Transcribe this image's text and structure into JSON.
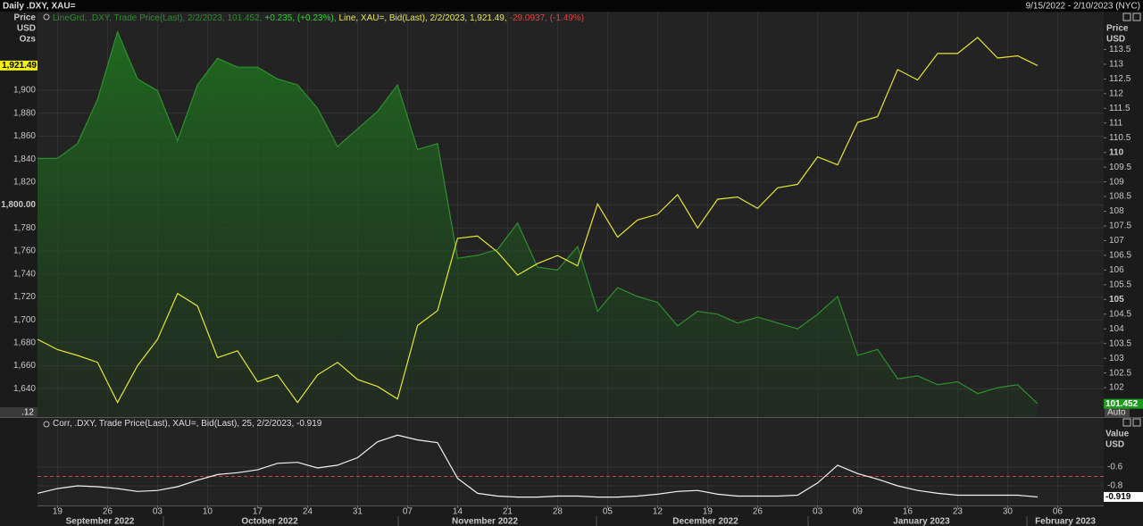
{
  "header": {
    "title": "Daily .DXY, XAU=",
    "range": "9/15/2022 - 2/10/2023 (NYC)"
  },
  "ui": {
    "auto": "Auto",
    "cut_label": ".12"
  },
  "chart_data": [
    {
      "type": "line",
      "legend": [
        {
          "text": "LineGrd, .DXY, Trade Price(Last), 2/2/2023, 101.452,",
          "color": "#2e8b2e"
        },
        {
          "text": "+0.235, (+0.23%),",
          "color": "#36d236"
        },
        {
          "text": "Line, XAU=, Bid(Last), 2/2/2023, 1,921.49,",
          "color": "#e6e64d"
        },
        {
          "text": "-29.0937, (-1.49%)",
          "color": "#e04040"
        }
      ],
      "y_label": [
        "Price",
        "USD",
        "Ozs"
      ],
      "y2_label": [
        "Price",
        "USD"
      ],
      "x": [
        "2022-09-15",
        "2022-09-19",
        "2022-09-21",
        "2022-09-23",
        "2022-09-27",
        "2022-09-29",
        "2022-10-03",
        "2022-10-05",
        "2022-10-07",
        "2022-10-11",
        "2022-10-13",
        "2022-10-17",
        "2022-10-19",
        "2022-10-21",
        "2022-10-25",
        "2022-10-27",
        "2022-10-31",
        "2022-11-02",
        "2022-11-04",
        "2022-11-08",
        "2022-11-10",
        "2022-11-14",
        "2022-11-16",
        "2022-11-18",
        "2022-11-22",
        "2022-11-24",
        "2022-11-28",
        "2022-11-30",
        "2022-12-02",
        "2022-12-06",
        "2022-12-08",
        "2022-12-12",
        "2022-12-14",
        "2022-12-16",
        "2022-12-20",
        "2022-12-22",
        "2022-12-26",
        "2022-12-28",
        "2022-12-30",
        "2023-01-03",
        "2023-01-05",
        "2023-01-09",
        "2023-01-11",
        "2023-01-13",
        "2023-01-17",
        "2023-01-19",
        "2023-01-23",
        "2023-01-25",
        "2023-01-27",
        "2023-01-31",
        "2023-02-02"
      ],
      "ylim": [
        1615.3,
        1967.7
      ],
      "yticks": [
        {
          "value": 1640,
          "label": "1,640"
        },
        {
          "value": 1660,
          "label": "1,660"
        },
        {
          "value": 1680,
          "label": "1,680"
        },
        {
          "value": 1700,
          "label": "1,700"
        },
        {
          "value": 1720,
          "label": "1,720"
        },
        {
          "value": 1740,
          "label": "1,740"
        },
        {
          "value": 1760,
          "label": "1,760"
        },
        {
          "value": 1780,
          "label": "1,780"
        },
        {
          "value": 1800,
          "label": "1,800.00"
        },
        {
          "value": 1820,
          "label": "1,820"
        },
        {
          "value": 1840,
          "label": "1,840"
        },
        {
          "value": 1860,
          "label": "1,860"
        },
        {
          "value": 1880,
          "label": "1,880"
        },
        {
          "value": 1900,
          "label": "1,900"
        }
      ],
      "y2lim": [
        101.0,
        114.76
      ],
      "y2ticks": [
        102,
        102.5,
        103,
        103.5,
        104,
        104.5,
        105,
        105.5,
        106,
        106.5,
        107,
        107.5,
        108,
        108.5,
        109,
        109.5,
        110,
        110.5,
        111,
        111.5,
        112,
        112.5,
        113,
        113.5
      ],
      "grid": true,
      "series": [
        {
          "color": "#2f8f2f",
          "fill": "area",
          "axis": "y2",
          "tag": "101.452",
          "tag_color": "#1f9a1f",
          "values": [
            109.8,
            109.8,
            110.3,
            111.8,
            114.1,
            112.5,
            112.1,
            110.4,
            112.3,
            113.2,
            112.9,
            112.9,
            112.5,
            112.3,
            111.5,
            110.2,
            110.8,
            111.4,
            112.3,
            110.1,
            110.3,
            106.4,
            106.5,
            106.7,
            107.6,
            106.1,
            106.0,
            106.8,
            104.6,
            105.4,
            105.1,
            104.9,
            104.1,
            104.6,
            104.5,
            104.2,
            104.4,
            104.2,
            104.0,
            104.5,
            105.1,
            103.1,
            103.3,
            102.3,
            102.4,
            102.1,
            102.2,
            101.8,
            102.0,
            102.1,
            101.452
          ]
        },
        {
          "color": "#e6e630",
          "axis": "y",
          "tag": "1,921.49",
          "tag_color": "#f0f000",
          "values": [
            1683,
            1674,
            1669,
            1663,
            1628,
            1660,
            1683,
            1723,
            1712,
            1667,
            1673,
            1646,
            1652,
            1628,
            1652,
            1663,
            1648,
            1642,
            1631,
            1695,
            1708,
            1771,
            1773,
            1759,
            1739,
            1749,
            1756,
            1747,
            1801,
            1772,
            1787,
            1792,
            1809,
            1780,
            1805,
            1807,
            1797,
            1815,
            1818,
            1842,
            1835,
            1872,
            1877,
            1918,
            1909,
            1932,
            1932,
            1946,
            1928,
            1930,
            1921.49
          ]
        }
      ]
    },
    {
      "type": "line",
      "legend": [
        {
          "text": "Corr, .DXY, Trade Price(Last), XAU=, Bid(Last),  25, 2/2/2023, -0.919",
          "color": "#dddddd"
        }
      ],
      "y_label": [
        "Value",
        "USD"
      ],
      "yaxis_side": "right",
      "x": [
        "2022-09-15",
        "2022-09-19",
        "2022-09-21",
        "2022-09-23",
        "2022-09-27",
        "2022-09-29",
        "2022-10-03",
        "2022-10-05",
        "2022-10-07",
        "2022-10-11",
        "2022-10-13",
        "2022-10-17",
        "2022-10-19",
        "2022-10-21",
        "2022-10-25",
        "2022-10-27",
        "2022-10-31",
        "2022-11-02",
        "2022-11-04",
        "2022-11-08",
        "2022-11-10",
        "2022-11-14",
        "2022-11-16",
        "2022-11-18",
        "2022-11-22",
        "2022-11-24",
        "2022-11-28",
        "2022-11-30",
        "2022-12-02",
        "2022-12-06",
        "2022-12-08",
        "2022-12-12",
        "2022-12-14",
        "2022-12-16",
        "2022-12-20",
        "2022-12-22",
        "2022-12-26",
        "2022-12-28",
        "2022-12-30",
        "2023-01-03",
        "2023-01-05",
        "2023-01-09",
        "2023-01-11",
        "2023-01-13",
        "2023-01-17",
        "2023-01-19",
        "2023-01-23",
        "2023-01-25",
        "2023-01-27",
        "2023-01-31",
        "2023-02-02"
      ],
      "ylim": [
        -1.01,
        -0.076
      ],
      "yticks": [
        -0.6,
        -0.8
      ],
      "ref_line": {
        "value": -0.7,
        "color": "#c04848"
      },
      "xticks": [
        {
          "value": "2022-09-19",
          "label": "19"
        },
        {
          "value": "2022-09-26",
          "label": "26"
        },
        {
          "value": "2022-10-03",
          "label": "03"
        },
        {
          "value": "2022-10-10",
          "label": "10"
        },
        {
          "value": "2022-10-17",
          "label": "17"
        },
        {
          "value": "2022-10-24",
          "label": "24"
        },
        {
          "value": "2022-10-31",
          "label": "31"
        },
        {
          "value": "2022-11-07",
          "label": "07"
        },
        {
          "value": "2022-11-14",
          "label": "14"
        },
        {
          "value": "2022-11-21",
          "label": "21"
        },
        {
          "value": "2022-11-28",
          "label": "28"
        },
        {
          "value": "2022-12-05",
          "label": "05"
        },
        {
          "value": "2022-12-12",
          "label": "12"
        },
        {
          "value": "2022-12-19",
          "label": "19"
        },
        {
          "value": "2022-12-26",
          "label": "26"
        },
        {
          "value": "2023-01-03",
          "label": "03"
        },
        {
          "value": "2023-01-09",
          "label": "09"
        },
        {
          "value": "2023-01-16",
          "label": "16"
        },
        {
          "value": "2023-01-23",
          "label": "23"
        },
        {
          "value": "2023-01-30",
          "label": "30"
        },
        {
          "value": "2023-02-06",
          "label": "06"
        }
      ],
      "months": [
        "September 2022",
        "October 2022",
        "November 2022",
        "December 2022",
        "January 2023",
        "February 2023"
      ],
      "grid": true,
      "series": [
        {
          "color": "#f2f2f2",
          "tag": "-0.919",
          "tag_color": "#ffffff",
          "values": [
            -0.88,
            -0.83,
            -0.8,
            -0.81,
            -0.83,
            -0.86,
            -0.85,
            -0.81,
            -0.74,
            -0.68,
            -0.66,
            -0.63,
            -0.56,
            -0.55,
            -0.61,
            -0.58,
            -0.5,
            -0.33,
            -0.26,
            -0.31,
            -0.34,
            -0.72,
            -0.88,
            -0.91,
            -0.92,
            -0.92,
            -0.91,
            -0.91,
            -0.92,
            -0.92,
            -0.91,
            -0.89,
            -0.86,
            -0.85,
            -0.89,
            -0.91,
            -0.91,
            -0.91,
            -0.9,
            -0.77,
            -0.58,
            -0.67,
            -0.73,
            -0.8,
            -0.85,
            -0.88,
            -0.9,
            -0.9,
            -0.9,
            -0.9,
            -0.919
          ]
        }
      ]
    }
  ]
}
